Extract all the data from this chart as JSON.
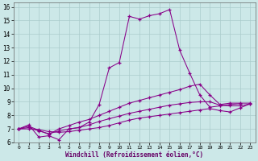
{
  "title": "",
  "xlabel": "Windchill (Refroidissement éolien,°C)",
  "background_color": "#cce8e8",
  "line_color": "#880088",
  "grid_color": "#aacccc",
  "xlim": [
    -0.5,
    23.5
  ],
  "ylim": [
    6,
    16.3
  ],
  "xticks": [
    0,
    1,
    2,
    3,
    4,
    5,
    6,
    7,
    8,
    9,
    10,
    11,
    12,
    13,
    14,
    15,
    16,
    17,
    18,
    19,
    20,
    21,
    22,
    23
  ],
  "yticks": [
    6,
    7,
    8,
    9,
    10,
    11,
    12,
    13,
    14,
    15,
    16
  ],
  "line1_x": [
    0,
    1,
    2,
    3,
    4,
    5,
    6,
    7,
    8,
    9,
    10,
    11,
    12,
    13,
    14,
    15,
    16,
    17,
    18,
    19,
    20,
    21,
    22
  ],
  "line1_y": [
    7.0,
    7.3,
    6.4,
    6.5,
    6.2,
    7.0,
    7.1,
    7.5,
    8.8,
    11.5,
    11.9,
    15.3,
    15.1,
    15.35,
    15.5,
    15.8,
    12.8,
    11.1,
    9.5,
    8.6,
    8.7,
    8.8,
    8.85
  ],
  "line2_x": [
    0,
    1,
    2,
    3,
    4,
    5,
    6,
    7,
    8,
    9,
    10,
    11,
    12,
    13,
    14,
    15,
    16,
    17,
    18,
    19,
    20,
    21,
    22,
    23
  ],
  "line2_y": [
    7.0,
    7.2,
    6.9,
    6.6,
    7.0,
    7.25,
    7.5,
    7.7,
    8.0,
    8.3,
    8.6,
    8.9,
    9.1,
    9.3,
    9.5,
    9.7,
    9.9,
    10.15,
    10.3,
    9.5,
    8.8,
    8.9,
    8.9,
    8.9
  ],
  "line3_x": [
    0,
    1,
    2,
    3,
    4,
    5,
    6,
    7,
    8,
    9,
    10,
    11,
    12,
    13,
    14,
    15,
    16,
    17,
    18,
    19,
    20,
    21,
    22,
    23
  ],
  "line3_y": [
    7.0,
    7.1,
    6.85,
    6.65,
    6.85,
    7.0,
    7.1,
    7.3,
    7.55,
    7.75,
    7.95,
    8.15,
    8.3,
    8.45,
    8.6,
    8.75,
    8.85,
    8.95,
    9.0,
    9.0,
    8.75,
    8.7,
    8.7,
    8.85
  ],
  "line4_x": [
    0,
    1,
    2,
    3,
    4,
    5,
    6,
    7,
    8,
    9,
    10,
    11,
    12,
    13,
    14,
    15,
    16,
    17,
    18,
    19,
    20,
    21,
    22,
    23
  ],
  "line4_y": [
    7.0,
    7.0,
    6.95,
    6.8,
    6.75,
    6.8,
    6.9,
    7.0,
    7.1,
    7.25,
    7.45,
    7.65,
    7.8,
    7.9,
    8.0,
    8.1,
    8.2,
    8.3,
    8.4,
    8.5,
    8.35,
    8.25,
    8.55,
    8.85
  ]
}
